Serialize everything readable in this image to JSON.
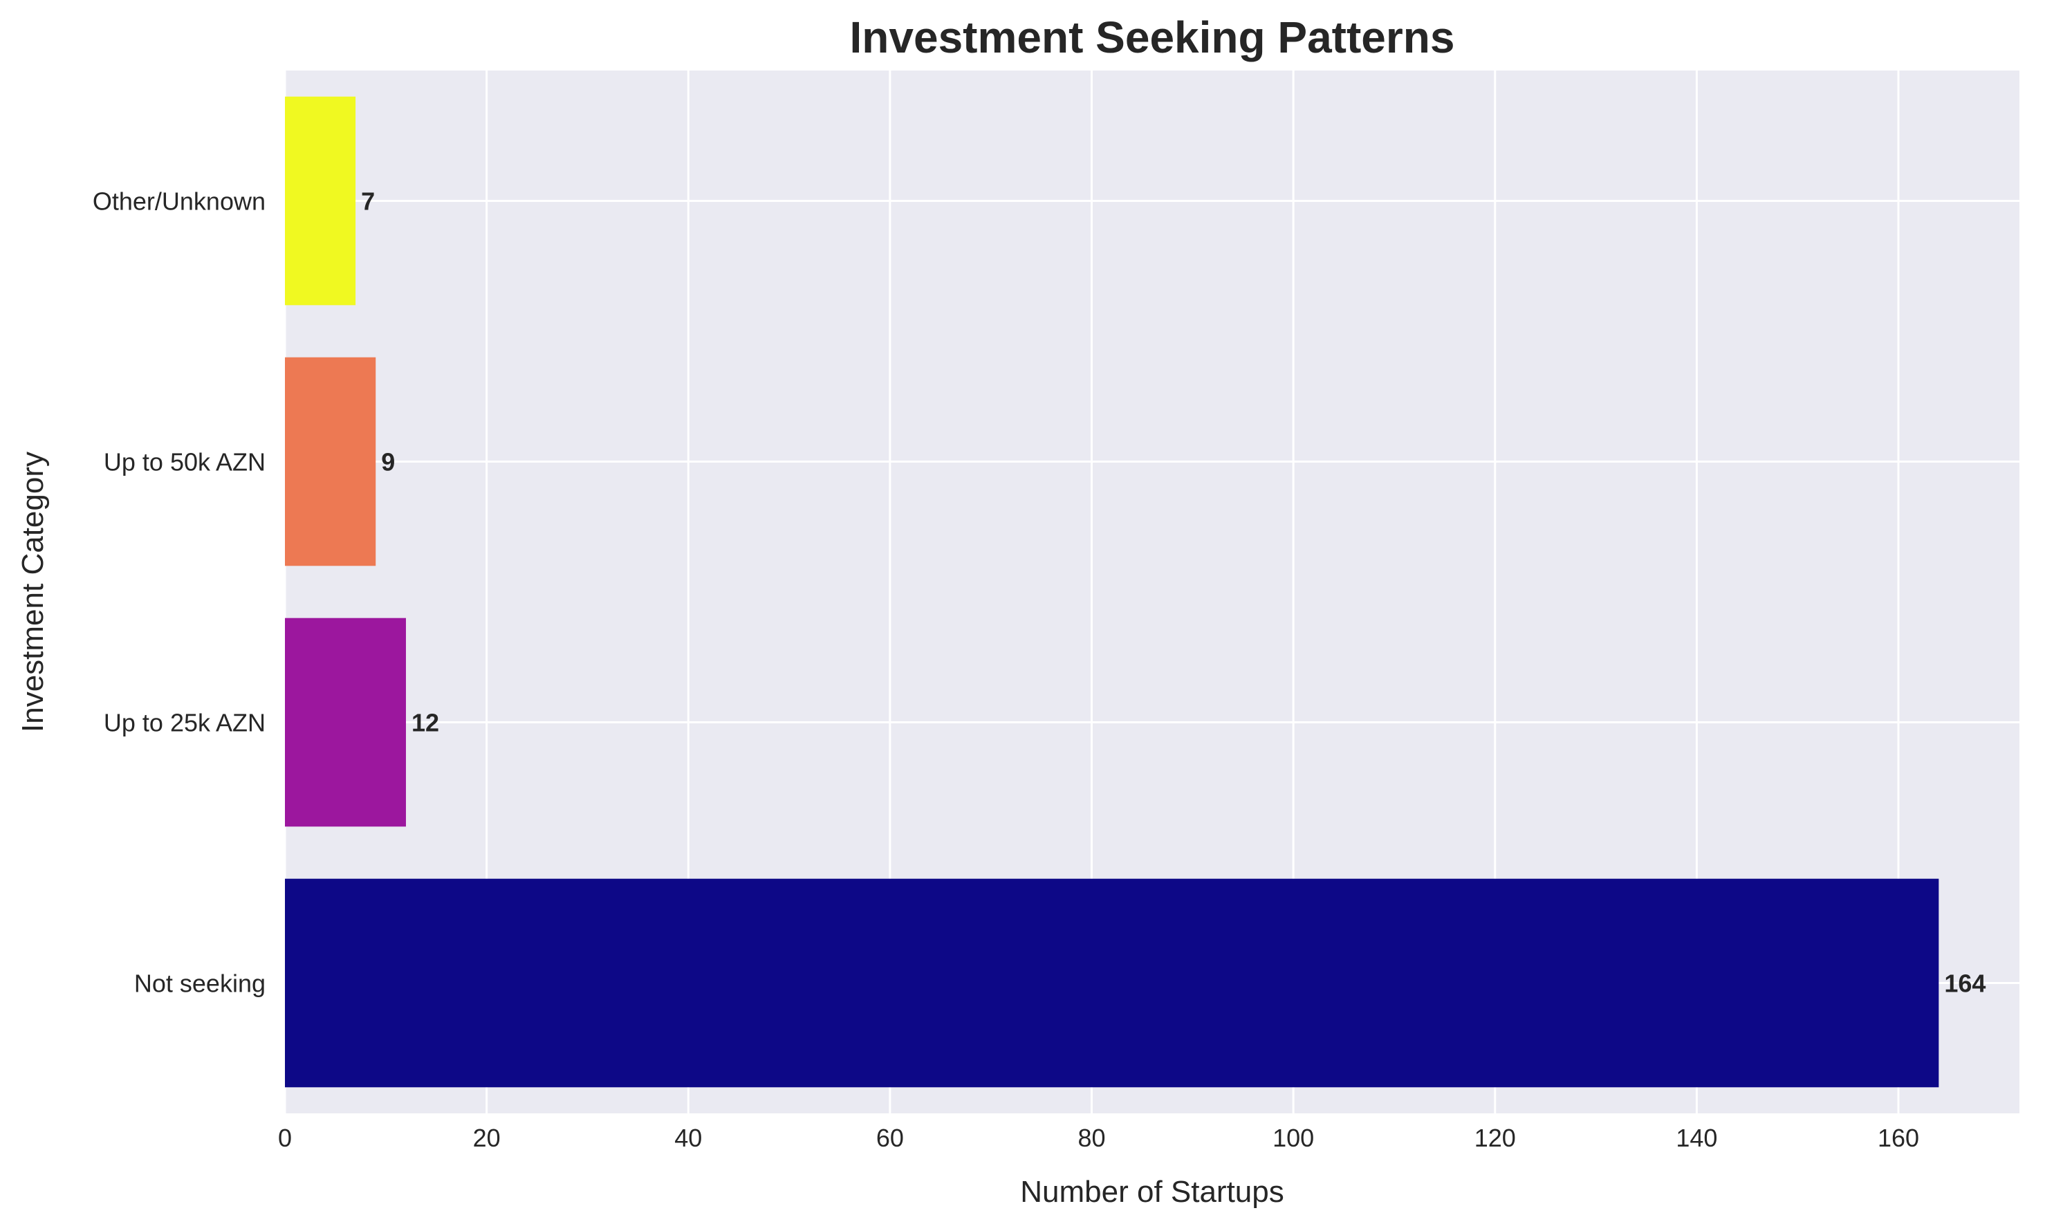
{
  "chart_data": {
    "type": "bar",
    "orientation": "horizontal",
    "title": "Investment Seeking Patterns",
    "xlabel": "Number of Startups",
    "ylabel": "Investment Category",
    "categories": [
      "Not seeking",
      "Up to 25k AZN",
      "Up to 50k AZN",
      "Other/Unknown"
    ],
    "values": [
      164,
      12,
      9,
      7
    ],
    "colors": [
      "#0d0887",
      "#9c179e",
      "#ed7953",
      "#f0f921"
    ],
    "data_labels": [
      "164",
      "12",
      "9",
      "7"
    ],
    "xlim": [
      0,
      172
    ],
    "xticks": [
      0,
      20,
      40,
      60,
      80,
      100,
      120,
      140,
      160
    ],
    "xtick_labels": [
      "0",
      "20",
      "40",
      "60",
      "80",
      "100",
      "120",
      "140",
      "160"
    ],
    "grid": true,
    "background": "#eaeaf2"
  }
}
